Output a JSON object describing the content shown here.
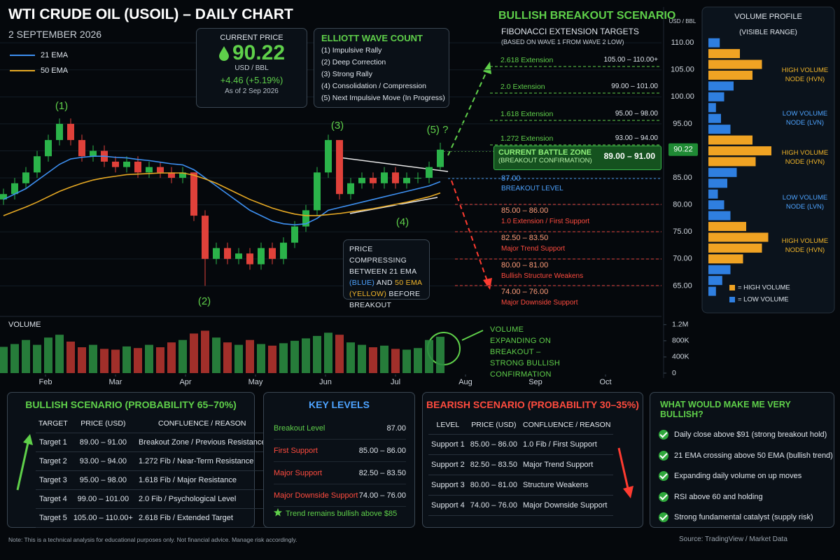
{
  "header": {
    "title": "WTI CRUDE OIL (USOIL) – DAILY CHART",
    "date": "2 SEPTEMBER 2026"
  },
  "price_box": {
    "label": "CURRENT PRICE",
    "price": "90.22",
    "unit": "USD / BBL",
    "change": "+4.46 (+5.19%)",
    "as_of": "As of 2 Sep 2026"
  },
  "wave_count": {
    "title": "ELLIOTT WAVE COUNT",
    "items": [
      "(1) Impulsive Rally",
      "(2) Deep Correction",
      "(3) Strong Rally",
      "(4) Consolidation / Compression",
      "(5) Next Impulsive Move (In Progress)"
    ]
  },
  "scenario": {
    "title": "BULLISH BREAKOUT SCENARIO",
    "subtitle": "FIBONACCI EXTENSION TARGETS",
    "note": "(BASED ON WAVE 1 FROM WAVE 2 LOW)",
    "targets": [
      {
        "label": "2.618 Extension",
        "range": "105.00 – 110.00+"
      },
      {
        "label": "2.0 Extension",
        "range": "99.00 – 101.00"
      },
      {
        "label": "1.618 Extension",
        "range": "95.00 – 98.00"
      },
      {
        "label": "1.272 Extension",
        "range": "93.00 – 94.00"
      }
    ],
    "battle_zone": {
      "label": "CURRENT BATTLE ZONE",
      "sub": "(BREAKOUT CONFIRMATION)",
      "range": "89.00 – 91.00"
    },
    "breakout": {
      "value": "87.00",
      "label": "BREAKOUT LEVEL"
    },
    "supports": [
      {
        "range": "85.00 – 86.00",
        "label": "1.0 Extension / First Support"
      },
      {
        "range": "82.50 – 83.50",
        "label": "Major Trend Support"
      },
      {
        "range": "80.00 – 81.00",
        "label": "Bullish Structure Weakens"
      },
      {
        "range": "74.00 – 76.00",
        "label": "Major Downside Support"
      }
    ]
  },
  "compression_note": [
    "PRICE COMPRESSING",
    "BETWEEN 21 EMA",
    "(BLUE)",
    "AND",
    "50 EMA",
    "(YELLOW)",
    "BEFORE",
    "BREAKOUT"
  ],
  "volume_note": "VOLUME EXPANDING ON BREAKOUT – STRONG BULLISH CONFIRMATION",
  "chart_data": [
    {
      "type": "candlestick",
      "y_label": "USD / BBL",
      "xlim": [
        1.35,
        10.8
      ],
      "ylim": [
        60,
        113
      ],
      "grid": true,
      "up_color": "#2bb34a",
      "down_color": "#e0413a",
      "yticks": [
        {
          "value": 65,
          "label": "65.00"
        },
        {
          "value": 70,
          "label": "70.00"
        },
        {
          "value": 75,
          "label": "75.00"
        },
        {
          "value": 80,
          "label": "80.00"
        },
        {
          "value": 85,
          "label": "85.00"
        },
        {
          "value": 90,
          "label": "90.00"
        },
        {
          "value": 95,
          "label": "95.00"
        },
        {
          "value": 100,
          "label": "100.00"
        },
        {
          "value": 105,
          "label": "105.00"
        },
        {
          "value": 110,
          "label": "110.00"
        }
      ],
      "x": [
        1.4,
        1.56,
        1.72,
        1.88,
        2.04,
        2.2,
        2.36,
        2.52,
        2.68,
        2.84,
        3.0,
        3.16,
        3.32,
        3.48,
        3.64,
        3.8,
        3.96,
        4.12,
        4.28,
        4.44,
        4.6,
        4.76,
        4.92,
        5.08,
        5.24,
        5.4,
        5.56,
        5.72,
        5.88,
        6.04,
        6.2,
        6.36,
        6.52,
        6.68,
        6.84,
        7.0,
        7.16,
        7.32,
        7.48,
        7.64
      ],
      "open": [
        81,
        82,
        84,
        86,
        89,
        92,
        95,
        92,
        89,
        90,
        88,
        87,
        88,
        86,
        87,
        86,
        85,
        86,
        78,
        70,
        72,
        70,
        71,
        69,
        72,
        70,
        73,
        76,
        79,
        86,
        92,
        82,
        84,
        85,
        84,
        86,
        84,
        85,
        85,
        87
      ],
      "high": [
        83,
        85,
        87,
        90,
        93,
        96,
        96,
        93,
        91,
        91,
        89,
        89,
        89,
        88,
        88,
        87,
        87,
        86,
        79,
        73,
        73,
        72,
        72,
        73,
        73,
        74,
        77,
        80,
        87,
        93,
        92,
        85,
        86,
        86,
        87,
        87,
        86,
        86,
        88,
        91.5
      ],
      "low": [
        80,
        81,
        83,
        85,
        88,
        91,
        91,
        88,
        88,
        87,
        86,
        86,
        85,
        85,
        85,
        84,
        84,
        77,
        65,
        69,
        69,
        69,
        68,
        68,
        69,
        69,
        72,
        75,
        78,
        85,
        81,
        81,
        83,
        83,
        83,
        83,
        83,
        84,
        84,
        86.5
      ],
      "close": [
        82,
        84,
        86,
        89,
        92,
        95,
        92,
        89,
        90,
        88,
        87,
        88,
        86,
        87,
        86,
        85,
        86,
        78,
        70,
        72,
        70,
        71,
        69,
        72,
        70,
        73,
        76,
        79,
        86,
        92,
        82,
        84,
        85,
        84,
        86,
        84,
        85,
        85,
        87,
        90.22
      ],
      "series": [
        {
          "name": "21 EMA",
          "color": "#3d8ff0",
          "values": [
            81,
            82,
            83,
            84.5,
            86,
            87.5,
            88.5,
            88.8,
            89,
            89,
            88.8,
            88.7,
            88.4,
            88.2,
            87.9,
            87.6,
            87.4,
            86.5,
            85,
            83.5,
            82,
            80.5,
            79,
            78,
            77,
            76.5,
            76.3,
            76.5,
            77.5,
            79,
            79.5,
            80,
            80.5,
            81,
            81.5,
            82,
            82.5,
            83,
            83.5,
            84.3
          ]
        },
        {
          "name": "50 EMA",
          "color": "#e5a823",
          "values": [
            78,
            78.8,
            79.6,
            80.5,
            81.5,
            82.5,
            83.3,
            84,
            84.6,
            85,
            85.3,
            85.6,
            85.7,
            85.8,
            85.9,
            85.9,
            85.9,
            85.5,
            84.8,
            84,
            83,
            82,
            81,
            80.2,
            79.4,
            78.8,
            78.3,
            78,
            78,
            78.2,
            78.4,
            78.7,
            79,
            79.3,
            79.7,
            80.1,
            80.5,
            81,
            81.5,
            82.2
          ]
        }
      ],
      "wave_labels": [
        "(1)",
        "(2)",
        "(3)",
        "(4)",
        "(5) ?"
      ]
    },
    {
      "type": "bar",
      "title": "VOLUME",
      "xlim": [
        1.35,
        10.8
      ],
      "ylim": [
        0,
        1300000
      ],
      "yticks": [
        0,
        {
          "value": 400000,
          "label": "400K"
        },
        {
          "value": 800000,
          "label": "800K"
        },
        {
          "value": 1200000,
          "label": "1.2M"
        }
      ],
      "xticks": [
        {
          "value": 2,
          "label": "Feb"
        },
        {
          "value": 3,
          "label": "Mar"
        },
        {
          "value": 4,
          "label": "Apr"
        },
        {
          "value": 5,
          "label": "May"
        },
        {
          "value": 6,
          "label": "Jun"
        },
        {
          "value": 7,
          "label": "Jul"
        },
        {
          "value": 8,
          "label": "Aug"
        },
        {
          "value": 9,
          "label": "Sep"
        },
        {
          "value": 10,
          "label": "Oct"
        }
      ],
      "x": [
        1.4,
        1.56,
        1.72,
        1.88,
        2.04,
        2.2,
        2.36,
        2.52,
        2.68,
        2.84,
        3.0,
        3.16,
        3.32,
        3.48,
        3.64,
        3.8,
        3.96,
        4.12,
        4.28,
        4.44,
        4.6,
        4.76,
        4.92,
        5.08,
        5.24,
        5.4,
        5.56,
        5.72,
        5.88,
        6.04,
        6.2,
        6.36,
        6.52,
        6.68,
        6.84,
        7.0,
        7.16,
        7.32,
        7.48,
        7.64
      ],
      "values": [
        650000,
        720000,
        820000,
        700000,
        880000,
        950000,
        780000,
        640000,
        700000,
        600000,
        580000,
        660000,
        620000,
        700000,
        640000,
        760000,
        820000,
        980000,
        1050000,
        880000,
        760000,
        700000,
        820000,
        720000,
        680000,
        740000,
        800000,
        860000,
        920000,
        1000000,
        950000,
        760000,
        700000,
        640000,
        680000,
        600000,
        580000,
        620000,
        820000,
        900000
      ]
    },
    {
      "type": "barh",
      "title": "VOLUME PROFILE",
      "subtitle": "(VISIBLE RANGE)",
      "ylim": [
        60,
        113
      ],
      "y": [
        64,
        66,
        68,
        70,
        72,
        74,
        76,
        78,
        80,
        82,
        84,
        86,
        88,
        90,
        92,
        94,
        96,
        98,
        100,
        102,
        104,
        106,
        108,
        110
      ],
      "series": [
        {
          "name": "= HIGH VOLUME",
          "color": "#f0a323",
          "values": [
            null,
            null,
            null,
            55,
            85,
            95,
            60,
            null,
            null,
            null,
            null,
            null,
            75,
            100,
            70,
            null,
            null,
            null,
            null,
            null,
            70,
            85,
            50,
            null
          ]
        },
        {
          "name": "= LOW VOLUME",
          "color": "#2f7fe0",
          "values": [
            12,
            22,
            35,
            null,
            null,
            null,
            null,
            35,
            25,
            15,
            30,
            45,
            null,
            null,
            null,
            35,
            20,
            12,
            25,
            40,
            null,
            null,
            null,
            18
          ]
        }
      ],
      "annotations": [
        "HIGH VOLUME NODE (HVN)",
        "LOW VOLUME NODE (LVN)",
        "HIGH VOLUME NODE (HVN)",
        "LOW VOLUME NODE (LVN)",
        "HIGH VOLUME NODE (HVN)"
      ]
    }
  ],
  "bullish_table": {
    "title": "BULLISH SCENARIO (PROBABILITY 65–70%)",
    "columns": [
      "TARGET",
      "PRICE (USD)",
      "CONFLUENCE / REASON"
    ],
    "rows": [
      [
        "Target 1",
        "89.00 – 91.00",
        "Breakout Zone / Previous Resistance"
      ],
      [
        "Target 2",
        "93.00 – 94.00",
        "1.272 Fib / Near-Term Resistance"
      ],
      [
        "Target 3",
        "95.00 – 98.00",
        "1.618 Fib / Major Resistance"
      ],
      [
        "Target 4",
        "99.00 – 101.00",
        "2.0 Fib / Psychological Level"
      ],
      [
        "Target 5",
        "105.00 – 110.00+",
        "2.618 Fib / Extended Target"
      ]
    ]
  },
  "key_levels": {
    "title": "KEY LEVELS",
    "rows": [
      [
        "Breakout Level",
        "87.00"
      ],
      [
        "First Support",
        "85.00 – 86.00"
      ],
      [
        "Major Support",
        "82.50 – 83.50"
      ],
      [
        "Major Downside Support",
        "74.00 – 76.00"
      ]
    ],
    "note": "Trend remains bullish above $85"
  },
  "bearish_table": {
    "title": "BEARISH SCENARIO (PROBABILITY 30–35%)",
    "columns": [
      "LEVEL",
      "PRICE (USD)",
      "CONFLUENCE / REASON"
    ],
    "rows": [
      [
        "Support 1",
        "85.00 – 86.00",
        "1.0 Fib / First Support"
      ],
      [
        "Support 2",
        "82.50 – 83.50",
        "Major Trend Support"
      ],
      [
        "Support 3",
        "80.00 – 81.00",
        "Structure Weakens"
      ],
      [
        "Support 4",
        "74.00 – 76.00",
        "Major Downside Support"
      ]
    ]
  },
  "checklist": {
    "title": "WHAT WOULD MAKE ME VERY BULLISH?",
    "items": [
      "Daily close above $91 (strong breakout hold)",
      "21 EMA crossing above 50 EMA (bullish trend)",
      "Expanding daily volume on up moves",
      "RSI above 60 and holding",
      "Strong fundamental catalyst (supply risk)"
    ]
  },
  "footer": {
    "note": "Note: This is a technical analysis for educational purposes only. Not financial advice. Manage risk accordingly.",
    "source": "Source: TradingView / Market Data"
  }
}
